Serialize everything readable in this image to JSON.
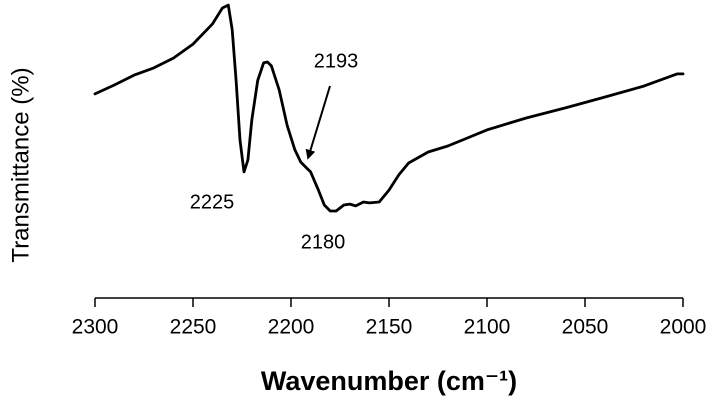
{
  "chart_data": {
    "type": "line",
    "x_label": "Wavenumber (cm⁻¹)",
    "y_label": "Transmittance (%)",
    "xlim": [
      2300,
      2000
    ],
    "xticks": [
      2300,
      2250,
      2200,
      2150,
      2100,
      2050,
      2000
    ],
    "ylim": [
      0,
      100
    ],
    "x": [
      2300,
      2290,
      2280,
      2270,
      2260,
      2250,
      2240,
      2235,
      2232,
      2230,
      2228,
      2226,
      2224,
      2222,
      2220,
      2217,
      2214,
      2212,
      2210,
      2206,
      2202,
      2198,
      2195,
      2192,
      2190,
      2186,
      2183,
      2180,
      2177,
      2173,
      2170,
      2167,
      2163,
      2160,
      2155,
      2150,
      2145,
      2140,
      2130,
      2120,
      2110,
      2100,
      2080,
      2060,
      2040,
      2020,
      2003,
      2000
    ],
    "series": [
      {
        "color": "#000000",
        "values": [
          68.5,
          71.5,
          74.8,
          77.2,
          80.5,
          85.2,
          92,
          97.3,
          98.3,
          90,
          73,
          53,
          42.3,
          46.3,
          59.7,
          73,
          78.9,
          79.2,
          77.9,
          69.8,
          58,
          49.7,
          45.6,
          43.6,
          42.3,
          36.2,
          31.2,
          29.2,
          29.2,
          31.2,
          31.5,
          30.9,
          32.2,
          31.9,
          32.2,
          36.2,
          41.3,
          45.3,
          49,
          51,
          53.7,
          56.4,
          60.4,
          63.8,
          67.4,
          71.1,
          75.2,
          75.2
        ]
      }
    ],
    "annotations": [
      "2225",
      "2193",
      "2180"
    ]
  }
}
